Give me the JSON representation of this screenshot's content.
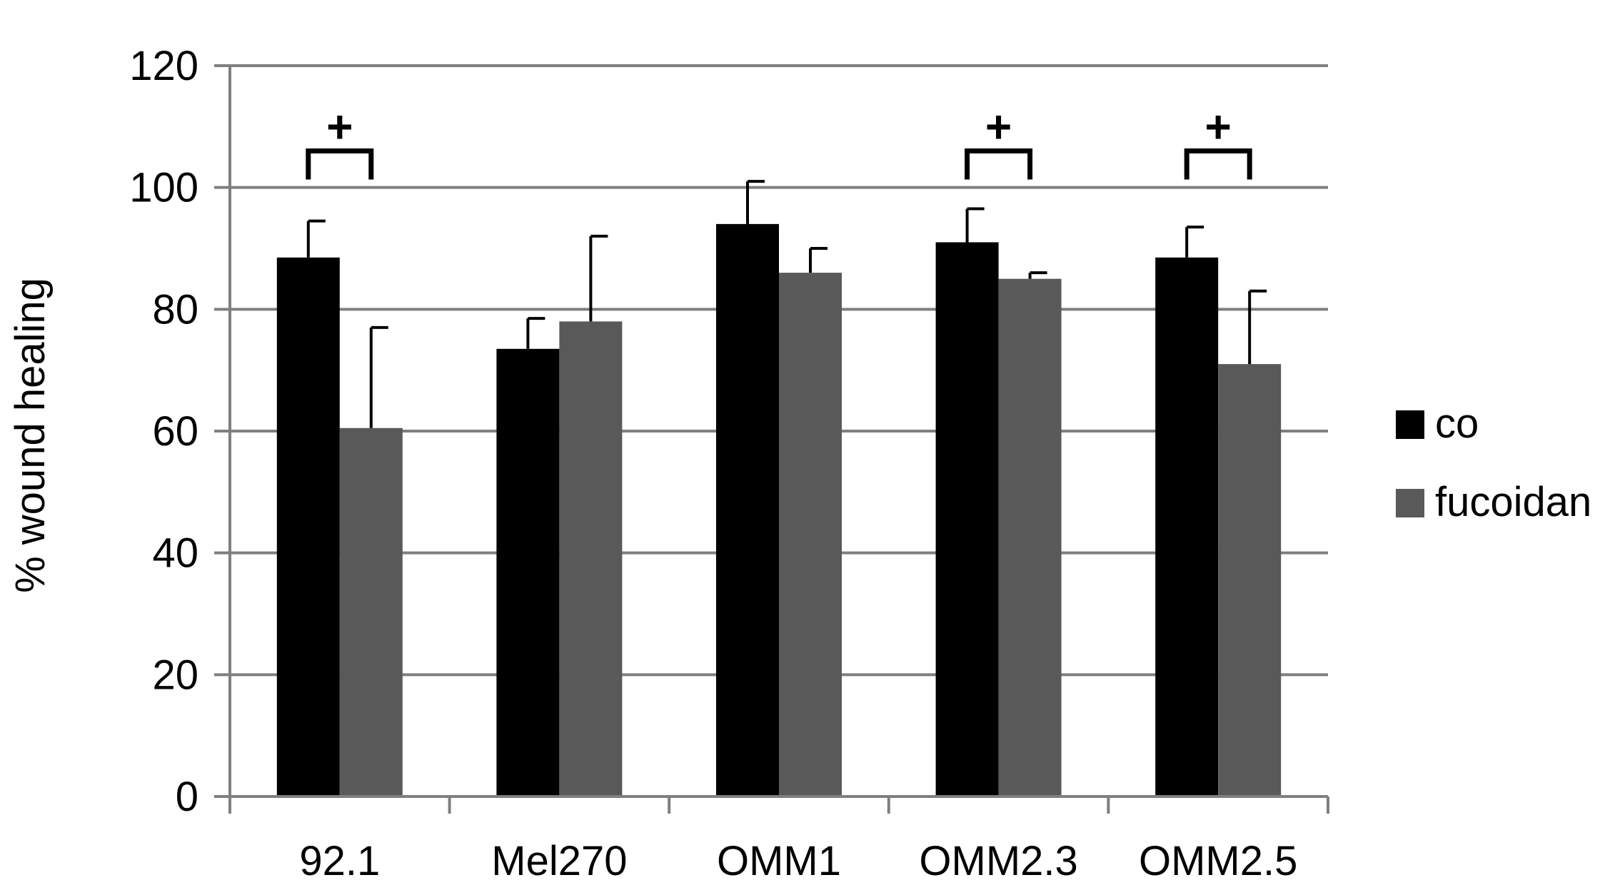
{
  "chart_data": {
    "type": "bar",
    "ylabel": "% wound healing",
    "ylim": [
      0,
      120
    ],
    "yticks": [
      0,
      20,
      40,
      60,
      80,
      100,
      120
    ],
    "grid": true,
    "legend_position": "right",
    "categories": [
      "92.1",
      "Mel270",
      "OMM1",
      "OMM2.3",
      "OMM2.5"
    ],
    "series": [
      {
        "name": "co",
        "color": "#000000",
        "values": [
          88.5,
          73.5,
          94,
          91,
          88.5
        ],
        "errors": [
          6,
          5,
          7,
          5.5,
          5
        ]
      },
      {
        "name": "fucoidan",
        "color": "#595959",
        "values": [
          60.5,
          78,
          86,
          85,
          71
        ],
        "errors": [
          16.5,
          14,
          4,
          1,
          12
        ]
      }
    ],
    "significance": [
      {
        "category_index": 0,
        "symbol": "+",
        "y": 106
      },
      {
        "category_index": 3,
        "symbol": "+",
        "y": 106
      },
      {
        "category_index": 4,
        "symbol": "+",
        "y": 106
      }
    ],
    "colors": {
      "axis": "#7f7f7f",
      "text": "#000000"
    }
  }
}
